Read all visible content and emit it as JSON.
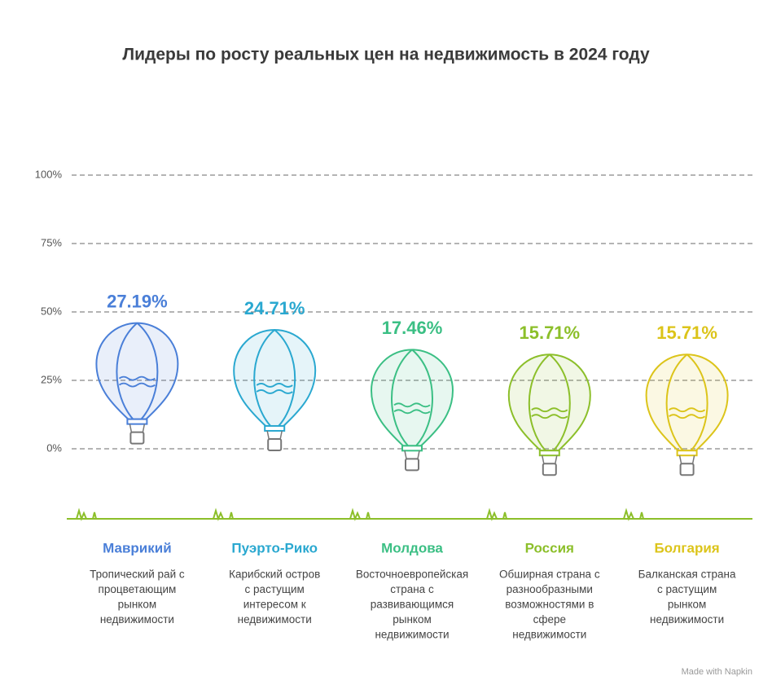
{
  "chart_data": {
    "type": "balloon",
    "title": "Лидеры по росту реальных цен на недвижимость в 2024 году",
    "categories": [
      "Маврикий",
      "Пуэрто-Рико",
      "Молдова",
      "Россия",
      "Болгария"
    ],
    "values": [
      27.19,
      24.71,
      17.46,
      15.71,
      15.71
    ],
    "value_labels": [
      "27.19%",
      "24.71%",
      "17.46%",
      "15.71%",
      "15.71%"
    ],
    "colors": [
      "#4a7fd8",
      "#2aa8d0",
      "#3bbf84",
      "#8cbf2a",
      "#dcc41a"
    ],
    "descriptions": [
      [
        "Тропический рай с",
        "процветающим",
        "рынком",
        "недвижимости"
      ],
      [
        "Карибский остров",
        "с растущим",
        "интересом к",
        "недвижимости"
      ],
      [
        "Восточноевропейская",
        "страна с",
        "развивающимся",
        "рынком",
        "недвижимости"
      ],
      [
        "Обширная страна с",
        "разнообразными",
        "возможностями в",
        "сфере",
        "недвижимости"
      ],
      [
        "Балканская страна",
        "с растущим",
        "рынком",
        "недвижимости"
      ]
    ],
    "ylim": [
      0,
      100
    ],
    "yticks": [
      {
        "value": 0,
        "label": "0%"
      },
      {
        "value": 25,
        "label": "25%"
      },
      {
        "value": 50,
        "label": "50%"
      },
      {
        "value": 75,
        "label": "75%"
      },
      {
        "value": 100,
        "label": "100%"
      }
    ],
    "grid": true,
    "footer": "Made with Napkin"
  }
}
